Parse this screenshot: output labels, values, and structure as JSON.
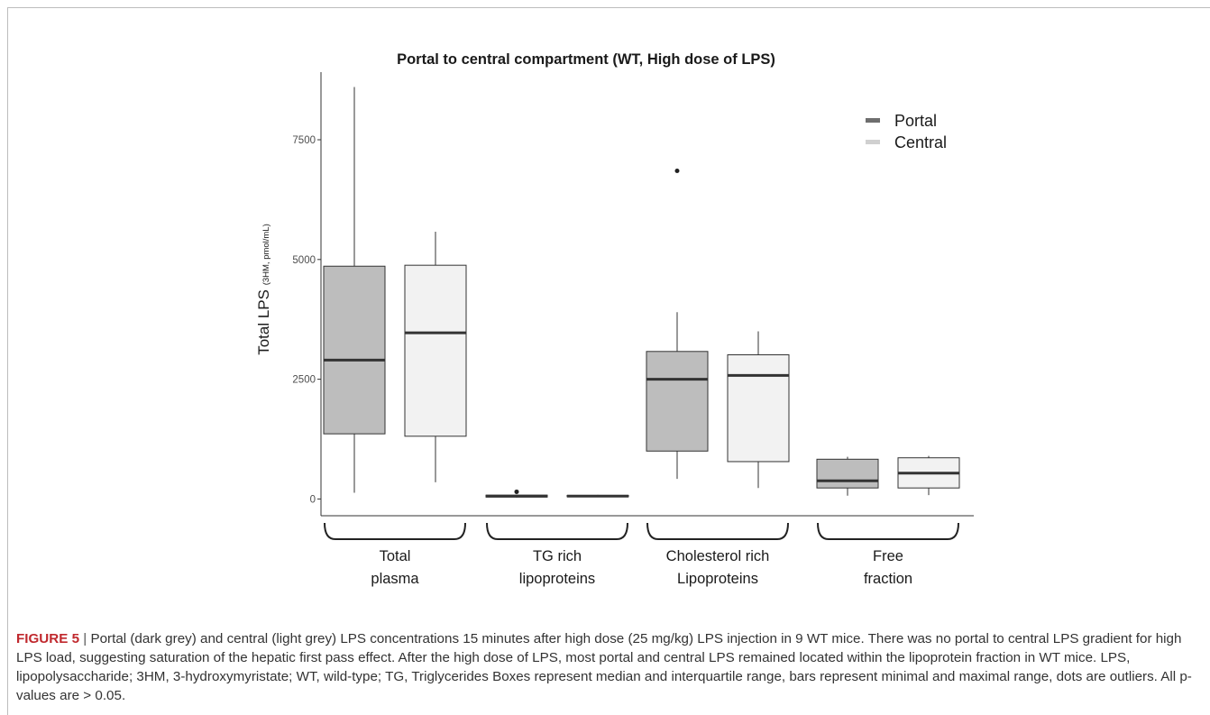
{
  "chart_data": {
    "type": "box",
    "title": "Portal to central compartment (WT, High dose of LPS)",
    "ylabel_main": "Total LPS",
    "ylabel_sub": "(3HM, pmol/mL)",
    "xlabel": "",
    "ylim": [
      -350,
      9100
    ],
    "yticks": [
      0,
      2500,
      5000,
      7500
    ],
    "ytick_labels": [
      "0",
      "2500",
      "5000",
      "7500"
    ],
    "groups": [
      {
        "label_lines": [
          "Total",
          "plasma"
        ]
      },
      {
        "label_lines": [
          "TG rich",
          "lipoproteins"
        ]
      },
      {
        "label_lines": [
          "Cholesterol rich",
          "Lipoproteins"
        ]
      },
      {
        "label_lines": [
          "Free",
          "fraction"
        ]
      }
    ],
    "series": [
      {
        "name": "Portal",
        "color": "#bdbdbd",
        "boxes": [
          {
            "min": 130,
            "q1": 1360,
            "median": 2900,
            "q3": 4860,
            "max": 8600,
            "outliers": []
          },
          {
            "min": 30,
            "q1": 40,
            "median": 60,
            "q3": 80,
            "max": 90,
            "outliers": [
              150
            ]
          },
          {
            "min": 420,
            "q1": 1000,
            "median": 2500,
            "q3": 3080,
            "max": 3900,
            "outliers": [
              6850
            ]
          },
          {
            "min": 70,
            "q1": 230,
            "median": 380,
            "q3": 830,
            "max": 880,
            "outliers": []
          }
        ]
      },
      {
        "name": "Central",
        "color": "#f2f2f2",
        "boxes": [
          {
            "min": 350,
            "q1": 1310,
            "median": 3470,
            "q3": 4880,
            "max": 5580,
            "outliers": []
          },
          {
            "min": 40,
            "q1": 50,
            "median": 60,
            "q3": 75,
            "max": 85,
            "outliers": []
          },
          {
            "min": 230,
            "q1": 780,
            "median": 2580,
            "q3": 3010,
            "max": 3500,
            "outliers": []
          },
          {
            "min": 80,
            "q1": 230,
            "median": 540,
            "q3": 860,
            "max": 900,
            "outliers": []
          }
        ]
      }
    ],
    "legend": {
      "position": "top-right",
      "items": [
        {
          "label": "Portal",
          "color": "#6e6e6e"
        },
        {
          "label": "Central",
          "color": "#d0d0d0"
        }
      ]
    },
    "grid": false
  },
  "caption": {
    "label": "FIGURE 5",
    "separator": "|",
    "text": "Portal (dark grey) and central (light grey) LPS concentrations 15 minutes after high dose (25 mg/kg) LPS injection in 9 WT mice. There was no portal to central LPS gradient for high LPS load, suggesting saturation of the hepatic first pass effect. After the high dose of LPS, most portal and central LPS remained located within the lipoprotein fraction in WT mice. LPS, lipopolysaccharide; 3HM, 3-hydroxymyristate; WT, wild-type; TG, Triglycerides Boxes represent median and interquartile range, bars represent minimal and maximal range, dots are outliers. All p-values are > 0.05."
  }
}
